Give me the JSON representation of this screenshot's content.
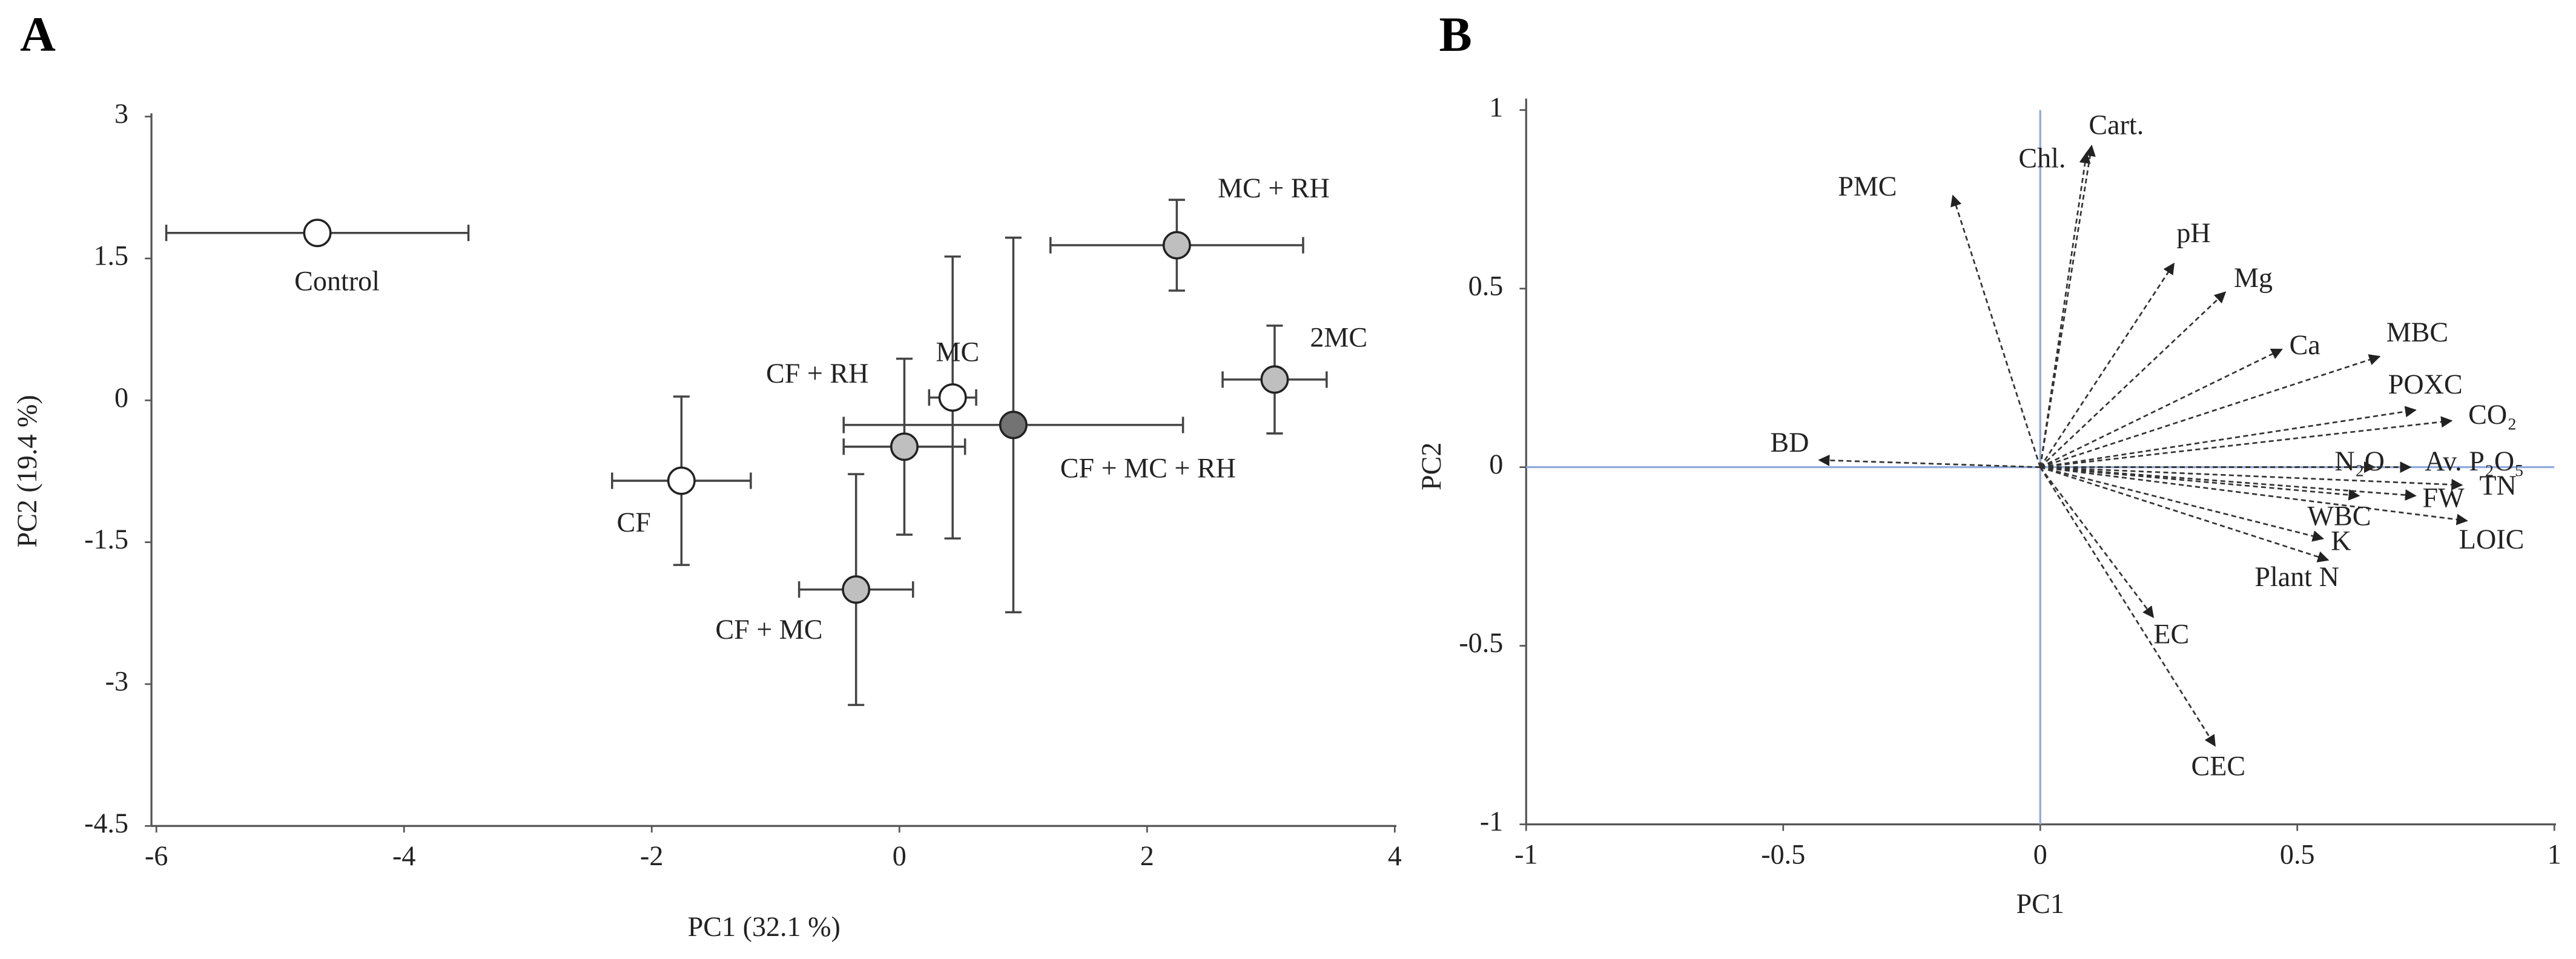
{
  "chart_data": [
    {
      "type": "scatter",
      "panel": "A",
      "xlabel": "PC1 (32.1 %)",
      "ylabel": "PC2 (19.4 %)",
      "xlim": [
        -6,
        4
      ],
      "xticks": [
        -6,
        -4,
        -2,
        0,
        2,
        4
      ],
      "ylim": [
        -4.5,
        3
      ],
      "yticks": [
        3,
        1.5,
        0,
        -1.5,
        -3,
        -4.5
      ],
      "points": [
        {
          "name": "Control",
          "x": -4.7,
          "y": 1.77,
          "xerr": 1.22,
          "yerr": 0.05,
          "color": "#ffffff"
        },
        {
          "name": "MC + RH",
          "x": 2.24,
          "y": 1.64,
          "xerr": 1.02,
          "yerr": 0.48,
          "color": "#bfbfbf"
        },
        {
          "name": "2MC",
          "x": 3.03,
          "y": 0.22,
          "xerr": 0.42,
          "yerr": 0.57,
          "color": "#bfbfbf"
        },
        {
          "name": "MC",
          "x": 0.43,
          "y": 0.03,
          "xerr": 0.19,
          "yerr": 1.49,
          "color": "#ffffff"
        },
        {
          "name": "CF + RH",
          "x": 0.04,
          "y": -0.49,
          "xerr": 0.49,
          "yerr": 0.93,
          "color": "#bfbfbf"
        },
        {
          "name": "CF + MC + RH",
          "x": 0.92,
          "y": -0.26,
          "xerr": 1.37,
          "yerr": 1.98,
          "color": "#737373"
        },
        {
          "name": "CF",
          "x": -1.76,
          "y": -0.85,
          "xerr": 0.56,
          "yerr": 0.89,
          "color": "#ffffff"
        },
        {
          "name": "CF + MC",
          "x": -0.35,
          "y": -2.0,
          "xerr": 0.46,
          "yerr": 1.22,
          "color": "#bfbfbf"
        }
      ]
    },
    {
      "type": "biplot",
      "panel": "B",
      "xlabel": "PC1",
      "ylabel": "PC2",
      "xlim": [
        -1,
        1
      ],
      "xticks": [
        -1,
        -0.5,
        0,
        0.5,
        1
      ],
      "ylim": [
        -1,
        1
      ],
      "yticks": [
        1,
        0.5,
        0,
        -0.5,
        -1
      ],
      "color": "#333333",
      "zero_line_color": "#8faadc",
      "vectors": [
        {
          "name": "BD",
          "x": -0.43,
          "y": 0.02
        },
        {
          "name": "PMC",
          "x": -0.17,
          "y": 0.76
        },
        {
          "name": "Chl.",
          "x": 0.09,
          "y": 0.88
        },
        {
          "name": "Cart.",
          "x": 0.1,
          "y": 0.9
        },
        {
          "name": "pH",
          "x": 0.26,
          "y": 0.57
        },
        {
          "name": "Mg",
          "x": 0.36,
          "y": 0.49
        },
        {
          "name": "Ca",
          "x": 0.47,
          "y": 0.33
        },
        {
          "name": "MBC",
          "x": 0.66,
          "y": 0.31
        },
        {
          "name": "POXC",
          "x": 0.73,
          "y": 0.16
        },
        {
          "name": "CO₂",
          "x": 0.8,
          "y": 0.13
        },
        {
          "name": "N₂O",
          "x": 0.65,
          "y": 0.0
        },
        {
          "name": "Av. P₂O₅",
          "x": 0.72,
          "y": 0.0
        },
        {
          "name": "TN",
          "x": 0.82,
          "y": -0.05
        },
        {
          "name": "FW",
          "x": 0.73,
          "y": -0.08
        },
        {
          "name": "LOIC",
          "x": 0.83,
          "y": -0.15
        },
        {
          "name": "WBC",
          "x": 0.62,
          "y": -0.08
        },
        {
          "name": "K",
          "x": 0.55,
          "y": -0.2
        },
        {
          "name": "Plant N",
          "x": 0.56,
          "y": -0.26
        },
        {
          "name": "EC",
          "x": 0.22,
          "y": -0.42
        },
        {
          "name": "CEC",
          "x": 0.34,
          "y": -0.78
        }
      ]
    }
  ]
}
